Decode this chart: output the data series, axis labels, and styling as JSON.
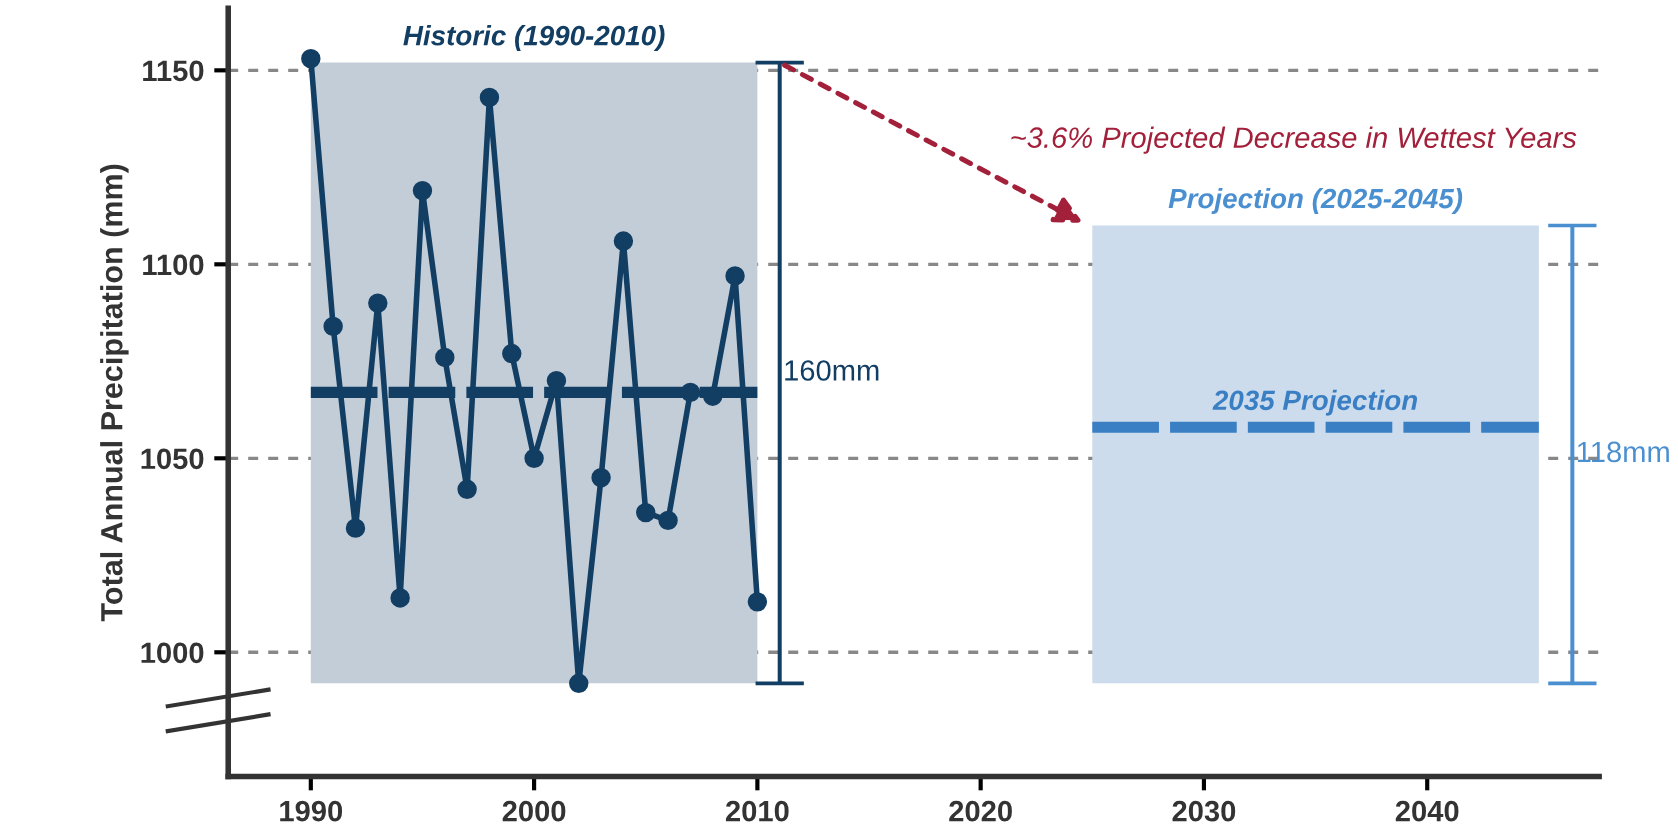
{
  "chart_data": {
    "type": "line",
    "ylabel": "Total Annual Precipitation (mm)",
    "xlim": [
      1986.3,
      2047.7
    ],
    "xticks": [
      1990,
      2000,
      2010,
      2020,
      2030,
      2040
    ],
    "ylim": [
      968,
      1166
    ],
    "yticks": [
      1000,
      1050,
      1100,
      1150
    ],
    "grid": "y",
    "marker": "circle",
    "line_style": "solid",
    "legend": false,
    "x": [
      1990,
      1991,
      1992,
      1993,
      1994,
      1995,
      1996,
      1997,
      1998,
      1999,
      2000,
      2001,
      2002,
      2003,
      2004,
      2005,
      2006,
      2007,
      2008,
      2009,
      2010
    ],
    "series": [
      {
        "color": "#123e63",
        "values": [
          1153,
          1084,
          1032,
          1090,
          1014,
          1119,
          1076,
          1042,
          1143,
          1077,
          1050,
          1070,
          992,
          1045,
          1106,
          1036,
          1034,
          1067,
          1066,
          1097,
          1013
        ]
      },
      {
        "type": "bar",
        "x": [
          2011,
          2046.5
        ],
        "base": [
          992,
          992
        ],
        "values": [
          160,
          118
        ],
        "colors": [
          "#123e63",
          "#4a8fd0"
        ]
      }
    ],
    "bands": [
      {
        "axis": "x",
        "from": 1990,
        "to": 2010,
        "label": "Historic (1990-2010)",
        "color": "#c3cdd8"
      },
      {
        "axis": "x",
        "from": 2025,
        "to": 2045,
        "label": "Projection (2025-2045)",
        "color": "#ccdcec"
      }
    ],
    "ref_lines": [
      {
        "axis": "y",
        "value": 1067,
        "color": "#123e63",
        "line_style": "dashed"
      },
      {
        "axis": "y",
        "value": 1058,
        "label": "2035 Projection",
        "color": "#3a7fc4",
        "line_style": "dashed"
      }
    ],
    "annotations": [
      {
        "text": "~3.6% Projected Decrease in Wettest Years",
        "x": 2024.8,
        "y": 1110
      },
      {
        "text": "160mm",
        "x": 2011,
        "y": 1072
      },
      {
        "text": "118mm",
        "x": 2046.5,
        "y": 1051
      }
    ]
  }
}
